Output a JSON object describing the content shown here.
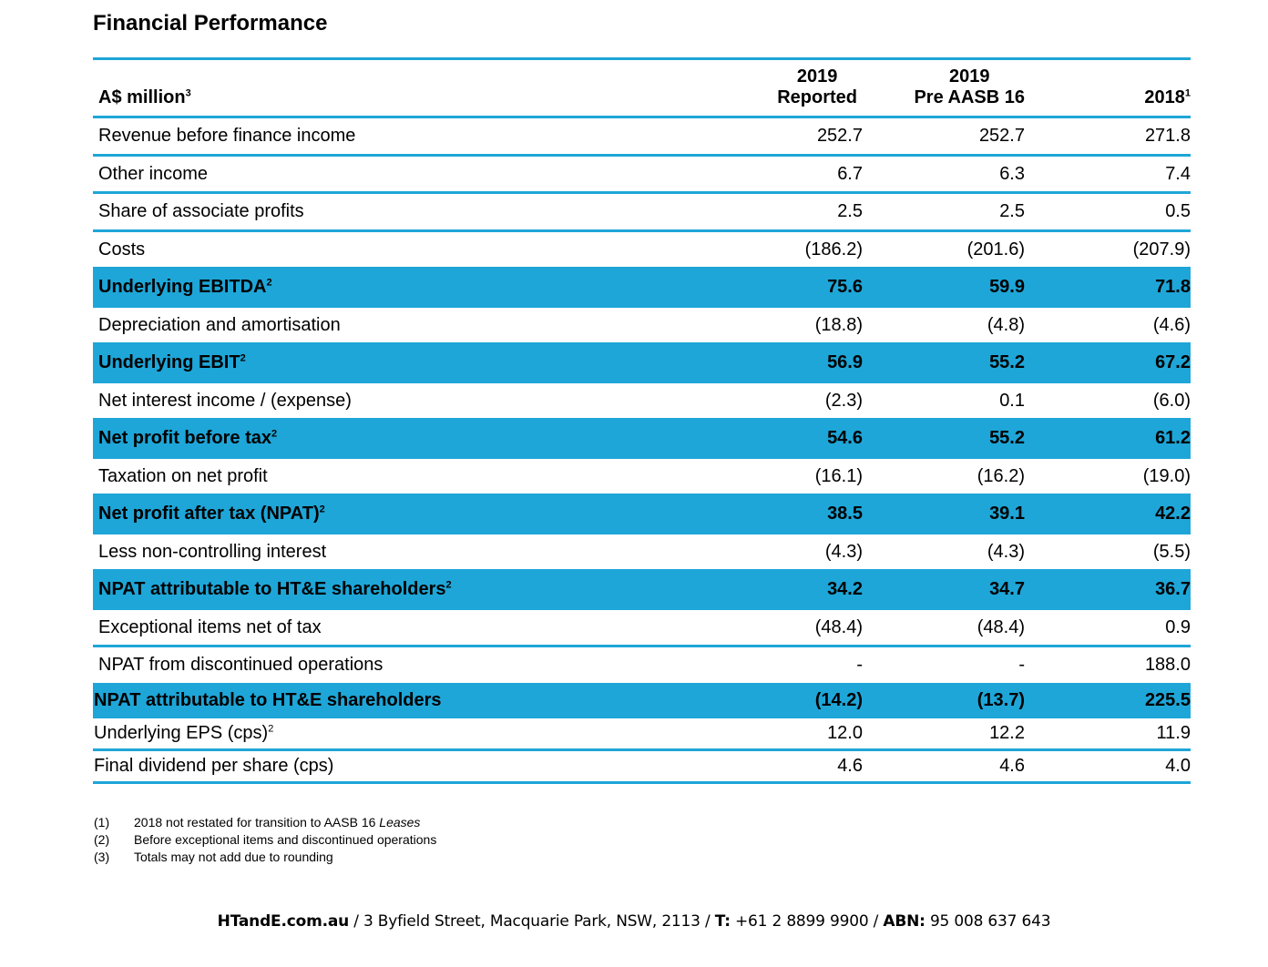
{
  "title": "Financial Performance",
  "table": {
    "header": {
      "label": "A$ million",
      "label_sup": "3",
      "col_a_line1": "2019",
      "col_a_line2": "Reported",
      "col_b_line1": "2019",
      "col_b_line2": "Pre AASB 16",
      "col_c": "2018",
      "col_c_sup": "1"
    },
    "rows": [
      {
        "label": "Revenue before finance income",
        "sup": "",
        "a": "252.7",
        "b": "252.7",
        "c": "271.8",
        "highlight": false
      },
      {
        "label": "Other income",
        "sup": "",
        "a": "6.7",
        "b": "6.3",
        "c": "7.4",
        "highlight": false
      },
      {
        "label": "Share of associate profits",
        "sup": "",
        "a": "2.5",
        "b": "2.5",
        "c": "0.5",
        "highlight": false
      },
      {
        "label": "Costs",
        "sup": "",
        "a": "(186.2)",
        "b": "(201.6)",
        "c": "(207.9)",
        "highlight": false
      },
      {
        "label": "Underlying EBITDA",
        "sup": "2",
        "a": "75.6",
        "b": "59.9",
        "c": "71.8",
        "highlight": true
      },
      {
        "label": "Depreciation and amortisation",
        "sup": "",
        "a": "(18.8)",
        "b": "(4.8)",
        "c": "(4.6)",
        "highlight": false
      },
      {
        "label": "Underlying EBIT",
        "sup": "2",
        "a": "56.9",
        "b": "55.2",
        "c": "67.2",
        "highlight": true
      },
      {
        "label": "Net interest income / (expense)",
        "sup": "",
        "a": "(2.3)",
        "b": "0.1",
        "c": "(6.0)",
        "highlight": false
      },
      {
        "label": "Net profit before tax",
        "sup": "2",
        "a": "54.6",
        "b": "55.2",
        "c": "61.2",
        "highlight": true
      },
      {
        "label": "Taxation on net profit",
        "sup": "",
        "a": "(16.1)",
        "b": "(16.2)",
        "c": "(19.0)",
        "highlight": false
      },
      {
        "label": "Net profit after tax (NPAT)",
        "sup": "2",
        "a": "38.5",
        "b": "39.1",
        "c": "42.2",
        "highlight": true
      },
      {
        "label": "Less non-controlling interest",
        "sup": "",
        "a": "(4.3)",
        "b": "(4.3)",
        "c": "(5.5)",
        "highlight": false
      },
      {
        "label": "NPAT attributable to HT&E shareholders",
        "sup": "2",
        "a": "34.2",
        "b": "34.7",
        "c": "36.7",
        "highlight": true
      },
      {
        "label": "Exceptional items net of tax",
        "sup": "",
        "a": "(48.4)",
        "b": "(48.4)",
        "c": "0.9",
        "highlight": false
      },
      {
        "label": "NPAT from discontinued operations",
        "sup": "",
        "a": "-",
        "b": "-",
        "c": "188.0",
        "highlight": false
      },
      {
        "label": "NPAT attributable to HT&E shareholders",
        "sup": "",
        "a": "(14.2)",
        "b": "(13.7)",
        "c": "225.5",
        "highlight": true,
        "tight": true
      },
      {
        "label": "Underlying EPS (cps)",
        "sup": "2",
        "a": "12.0",
        "b": "12.2",
        "c": "11.9",
        "highlight": false,
        "tight": true
      },
      {
        "label": "Final dividend per share (cps)",
        "sup": "",
        "a": "4.6",
        "b": "4.6",
        "c": "4.0",
        "highlight": false,
        "tight": true
      }
    ]
  },
  "notes": [
    {
      "num": "(1)",
      "text": "2018 not restated for transition to AASB 16 ",
      "italic": "Leases"
    },
    {
      "num": "(2)",
      "text": "Before exceptional items and discontinued operations",
      "italic": ""
    },
    {
      "num": "(3)",
      "text": "Totals may not add due to rounding",
      "italic": ""
    }
  ],
  "footer": {
    "site": "HTandE.com.au",
    "sep1": " / ",
    "address": "3 Byfield Street, Macquarie Park, NSW, 2113",
    "sep2": " / ",
    "t_label": "T:",
    "phone": " +61 2 8899 9900",
    "sep3": " / ",
    "abn_label": "ABN:",
    "abn": " 95 008 637 643"
  }
}
